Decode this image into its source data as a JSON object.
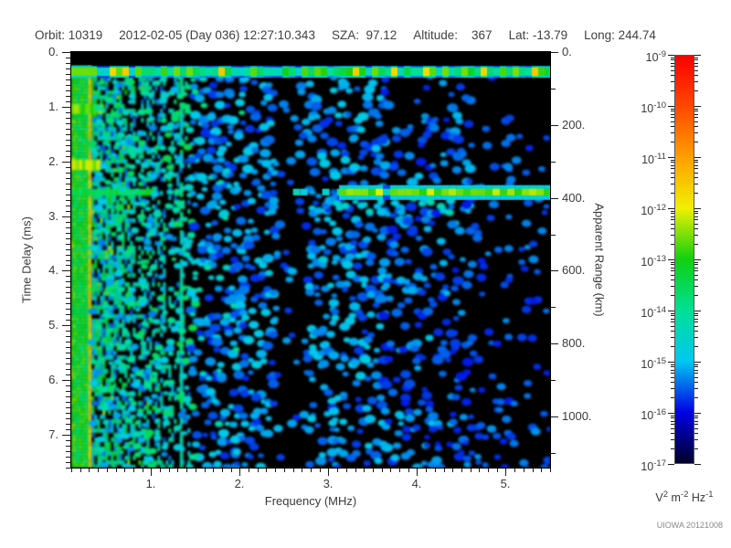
{
  "header": {
    "items": [
      "Orbit: 10319",
      "2012-02-05 (Day 036) 12:27:10.343",
      "SZA:  97.12",
      "Altitude:    367",
      "Lat: -13.79",
      "Long: 244.74"
    ]
  },
  "credit": "UIOWA 20121008",
  "chart_data": {
    "type": "heatmap",
    "x_axis": {
      "label": "Frequency (MHz)",
      "min": 0.1,
      "max": 5.5,
      "major_ticks": [
        1,
        2,
        3,
        4,
        5
      ],
      "major_labels": [
        "1.",
        "2.",
        "3.",
        "4.",
        "5."
      ],
      "minor_step": 0.1
    },
    "y_axis_left": {
      "label": "Time Delay (ms)",
      "min": 0,
      "max": 7.6,
      "major_ticks": [
        0,
        1,
        2,
        3,
        4,
        5,
        6,
        7
      ],
      "major_labels": [
        "0.",
        "1.",
        "2.",
        "3.",
        "4.",
        "5.",
        "6.",
        "7."
      ],
      "minor_step": 0.1,
      "direction": "down"
    },
    "y_axis_right": {
      "label": "Apparent Range (km)",
      "min": 0,
      "max": 1140,
      "major_ticks": [
        0,
        200,
        400,
        600,
        800,
        1000
      ],
      "major_labels": [
        "0.",
        "200.",
        "400.",
        "600.",
        "800.",
        "1000."
      ],
      "minor_step": 100,
      "direction": "down"
    },
    "colorbar": {
      "scale": "log",
      "max_exponent": -9,
      "min_exponent": -17,
      "tick_exponents": [
        -9,
        -10,
        -11,
        -12,
        -13,
        -14,
        -15,
        -16,
        -17
      ],
      "units_segments": [
        {
          "base": "V",
          "sup": "2"
        },
        {
          "base": "m",
          "sup": "-2"
        },
        {
          "base": "Hz",
          "sup": "-1"
        }
      ],
      "colors_low_to_high": [
        "#000028",
        "#0000e6",
        "#00c8f0",
        "#00e096",
        "#10d010",
        "#f0f000",
        "#ffa000",
        "#ff4800",
        "#fa0000"
      ]
    },
    "features": [
      {
        "name": "leading-black-strip",
        "delay_ms": [
          0.0,
          0.24
        ],
        "freq_mhz": [
          0.1,
          5.5
        ]
      },
      {
        "name": "first-reflection-band",
        "delay_ms": [
          0.26,
          0.47
        ],
        "freq_mhz": [
          0.1,
          5.5
        ],
        "approx_level_exp": -13
      },
      {
        "name": "ionosphere-echo-trace",
        "delay_ms": [
          2.49,
          2.63
        ],
        "freq_mhz": [
          3.12,
          5.5
        ],
        "approx_level_exp": -13,
        "apparent_range_km": 380
      },
      {
        "name": "low-frequency-noise-column",
        "freq_mhz": [
          0.1,
          0.3
        ],
        "delay_ms": [
          0.24,
          7.6
        ],
        "approx_level_exp": -14
      },
      {
        "name": "bright-vertical-line",
        "freq_mhz": [
          0.295,
          0.33
        ],
        "approx_level_exp": -12
      },
      {
        "name": "striped-noise-region",
        "freq_mhz": [
          0.33,
          1.42
        ],
        "delay_ms": [
          0.45,
          7.6
        ]
      },
      {
        "name": "cyan-vertical-line",
        "freq_mhz": [
          1.33,
          1.36
        ],
        "delay_ms": [
          0.45,
          7.6
        ]
      },
      {
        "name": "speckle-noise-region",
        "freq_mhz": [
          1.42,
          5.5
        ],
        "delay_ms": [
          0.45,
          7.6
        ],
        "approx_level_exp": -16
      },
      {
        "name": "quiet-vertical-bands",
        "freq_mhz_ranges": [
          [
            2.35,
            2.78
          ],
          [
            4.55,
            5.0
          ]
        ]
      },
      {
        "name": "left-horizontal-accents",
        "delay_ms_list": [
          1.0,
          2.05,
          2.55
        ],
        "freq_mhz": [
          0.1,
          0.5
        ]
      }
    ],
    "render": {
      "seed": 1337,
      "black_strip_delay": 0.235,
      "column": {
        "f0": 0.1,
        "f1": 0.295,
        "d0": 0.24,
        "d1": 7.6,
        "v0": 0.38,
        "v1": 0.55
      },
      "yellow_line": {
        "f0": 0.295,
        "f1": 0.328,
        "d0": 0.24,
        "d1": 7.6,
        "v0": 0.63,
        "v1": 0.75
      },
      "stripes": {
        "f0": 0.33,
        "f1": 1.42,
        "d0": 0.45,
        "d1": 7.6,
        "a0": 0.78,
        "a1": 0.18
      },
      "cyan_line": {
        "f0": 1.325,
        "f1": 1.362,
        "d0": 0.45,
        "d1": 7.6,
        "v0": 0.3,
        "v1": 0.42
      },
      "accents": [
        {
          "f0": 0.1,
          "f1": 0.46,
          "d0": 0.95,
          "d1": 1.13,
          "v": 0.55
        },
        {
          "f0": 0.1,
          "f1": 0.44,
          "d0": 1.97,
          "d1": 2.16,
          "v": 0.57
        },
        {
          "f0": 0.1,
          "f1": 1.0,
          "d0": 2.5,
          "d1": 2.63,
          "v": 0.45
        }
      ],
      "speckle_regions": [
        {
          "f0": 0.33,
          "f1": 1.45,
          "d0": 0.45,
          "d1": 7.6,
          "p": 0.3,
          "v0": 0.2,
          "v1": 0.45,
          "cell": 6,
          "r0": 2,
          "r1": 4
        },
        {
          "f0": 1.45,
          "f1": 2.35,
          "d0": 0.45,
          "d1": 7.6,
          "p": 0.42,
          "v0": 0.15,
          "v1": 0.27,
          "cell": 7,
          "r0": 2.5,
          "r1": 5
        },
        {
          "f0": 2.35,
          "f1": 2.78,
          "d0": 0.45,
          "d1": 7.6,
          "p": 0.16,
          "v0": 0.15,
          "v1": 0.24,
          "cell": 7,
          "r0": 2.5,
          "r1": 4.5
        },
        {
          "f0": 2.78,
          "f1": 3.6,
          "d0": 0.45,
          "d1": 7.6,
          "p": 0.4,
          "v0": 0.15,
          "v1": 0.27,
          "cell": 7,
          "r0": 2.5,
          "r1": 5
        },
        {
          "f0": 3.6,
          "f1": 4.55,
          "d0": 0.45,
          "d1": 7.6,
          "p": 0.34,
          "v0": 0.14,
          "v1": 0.25,
          "cell": 7,
          "r0": 2.5,
          "r1": 5
        },
        {
          "f0": 4.55,
          "f1": 5.0,
          "d0": 0.45,
          "d1": 7.6,
          "p": 0.16,
          "v0": 0.14,
          "v1": 0.22,
          "cell": 7,
          "r0": 2.5,
          "r1": 4.5
        },
        {
          "f0": 5.0,
          "f1": 5.5,
          "d0": 0.45,
          "d1": 7.6,
          "p": 0.13,
          "v0": 0.14,
          "v1": 0.22,
          "cell": 7,
          "r0": 2.5,
          "r1": 4.5
        },
        {
          "f0": 1.45,
          "f1": 1.95,
          "d0": 0.45,
          "d1": 7.6,
          "p": 0.07,
          "v0": 0.28,
          "v1": 0.4,
          "cell": 8,
          "r0": 2,
          "r1": 3.5
        },
        {
          "f0": 3.1,
          "f1": 4.4,
          "d0": 2.62,
          "d1": 2.95,
          "p": 0.35,
          "v0": 0.25,
          "v1": 0.35,
          "cell": 7,
          "r0": 2.5,
          "r1": 4
        }
      ],
      "band": {
        "d0": 0.255,
        "d1": 0.47,
        "core_d0": 0.285,
        "core_d1": 0.435,
        "v0": 0.3,
        "v1": 0.56,
        "bright_p": 0.1,
        "bright_v": 0.64
      },
      "trace": {
        "f0": 3.12,
        "f1": 5.5,
        "d0": 2.5,
        "d1": 2.62,
        "v0": 0.5,
        "v1": 0.62,
        "dim_p": 0.1,
        "faint_f0": 2.6
      },
      "blur": [
        1.2,
        0.7
      ]
    }
  }
}
